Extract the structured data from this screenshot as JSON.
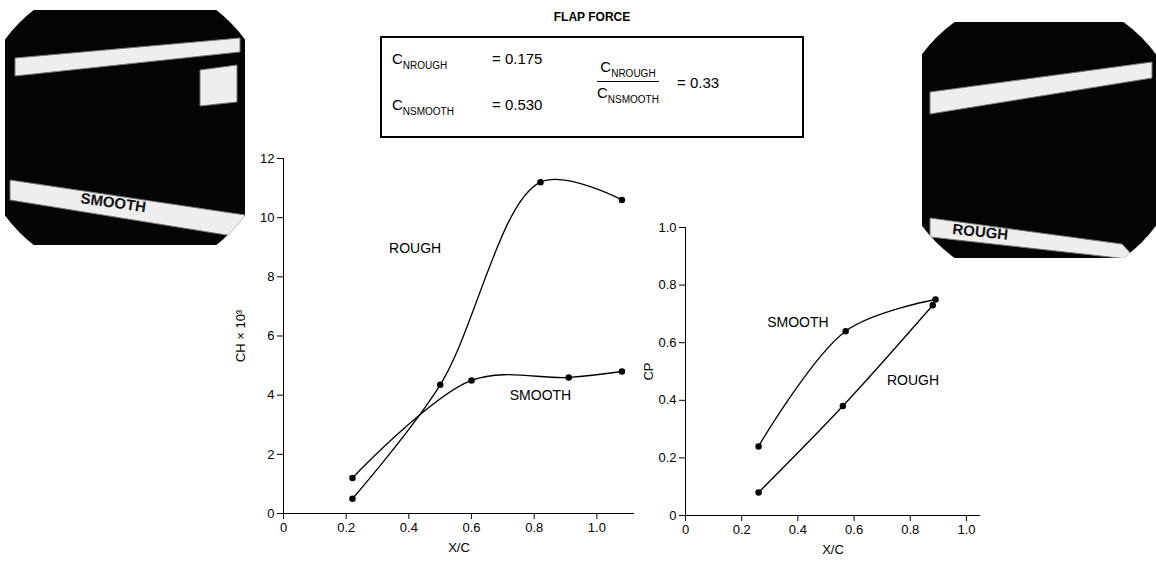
{
  "chart_data": [
    {
      "type": "line",
      "x_label": "X/C",
      "y_label": "CH × 10³",
      "xlim": [
        0,
        1.12
      ],
      "xticks": [
        0,
        0.2,
        0.4,
        0.6,
        0.8,
        {
          "value": 1,
          "label": "1.0"
        }
      ],
      "ylim": [
        0,
        12
      ],
      "yticks": [
        0,
        2,
        4,
        6,
        8,
        10,
        12
      ],
      "series": [
        {
          "name": "ROUGH",
          "color": "#000000",
          "marker": "circle",
          "label": {
            "x": 0.42,
            "y": 8.95
          },
          "x": [
            0.22,
            0.5,
            0.82,
            1.08
          ],
          "values": [
            0.5,
            4.35,
            11.2,
            10.6
          ]
        },
        {
          "name": "SMOOTH",
          "color": "#000000",
          "marker": "circle",
          "label": {
            "x": 0.82,
            "y": 4.0
          },
          "x": [
            0.22,
            0.6,
            0.91,
            1.08
          ],
          "values": [
            1.2,
            4.5,
            4.6,
            4.8
          ]
        }
      ]
    },
    {
      "type": "line",
      "x_label": "X/C",
      "y_label": "CP",
      "xlim": [
        0,
        1.05
      ],
      "xticks": [
        0,
        0.2,
        0.4,
        0.6,
        0.8,
        {
          "value": 1,
          "label": "1.0"
        }
      ],
      "ylim": [
        0,
        1
      ],
      "yticks": [
        0,
        0.2,
        0.4,
        0.6,
        0.8,
        {
          "value": 1,
          "label": "1.0"
        }
      ],
      "series": [
        {
          "name": "SMOOTH",
          "color": "#000000",
          "marker": "circle",
          "label": {
            "x": 0.4,
            "y": 0.67
          },
          "x": [
            0.26,
            0.57,
            0.89
          ],
          "values": [
            0.24,
            0.64,
            0.75
          ]
        },
        {
          "name": "ROUGH",
          "color": "#000000",
          "marker": "circle",
          "label": {
            "x": 0.81,
            "y": 0.47
          },
          "x": [
            0.26,
            0.56,
            0.88
          ],
          "values": [
            0.08,
            0.38,
            0.73
          ]
        }
      ]
    }
  ],
  "flap_force": {
    "title": "FLAP FORCE",
    "sign": "=",
    "items": [
      {
        "symbol": "C",
        "subscript": "NROUGH",
        "value": 0.175
      },
      {
        "symbol": "C",
        "subscript": "NSMOOTH",
        "value": 0.53,
        "value_label": "0.530"
      }
    ],
    "ratio": {
      "numerator": {
        "symbol": "C",
        "subscript": "NROUGH"
      },
      "denominator": {
        "symbol": "C",
        "subscript": "NSMOOTH"
      },
      "value": 0.33
    }
  },
  "photos": [
    {
      "label": "SMOOTH"
    },
    {
      "label": "ROUGH"
    }
  ]
}
